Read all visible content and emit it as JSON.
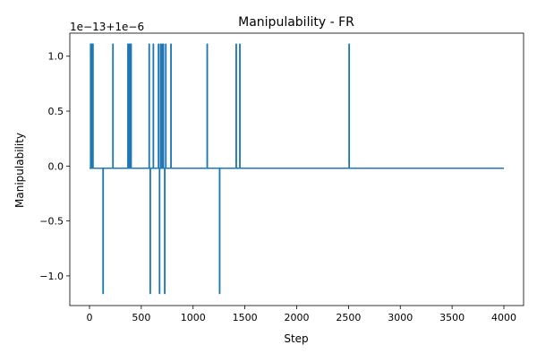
{
  "chart_data": {
    "type": "line",
    "title": "Manipulability - FR",
    "xlabel": "Step",
    "ylabel": "Manipulability",
    "offset_text": "1e−13+1e−6",
    "xlim": [
      -190,
      4190
    ],
    "ylim": [
      -1.27,
      1.21
    ],
    "x_ticks": [
      0,
      500,
      1000,
      1500,
      2000,
      2500,
      3000,
      3500,
      4000
    ],
    "x_tick_labels": [
      "0",
      "500",
      "1000",
      "1500",
      "2000",
      "2500",
      "3000",
      "3500",
      "4000"
    ],
    "y_ticks": [
      -1.0,
      -0.5,
      0.0,
      0.5,
      1.0
    ],
    "y_tick_labels": [
      "−1.0",
      "−0.5",
      "0.0",
      "0.5",
      "1.0"
    ],
    "grid": false,
    "legend": "none",
    "line_color": "#1f77b4",
    "x_range": [
      0,
      4000
    ],
    "baseline": -0.02,
    "high_value": 1.11,
    "low_value": -1.16,
    "events": [
      [
        10,
        1.11
      ],
      [
        18,
        1.11
      ],
      [
        26,
        1.11
      ],
      [
        32,
        1.11
      ],
      [
        130,
        -1.16
      ],
      [
        225,
        1.11
      ],
      [
        370,
        1.11
      ],
      [
        380,
        1.11
      ],
      [
        390,
        1.11
      ],
      [
        400,
        1.11
      ],
      [
        575,
        1.11
      ],
      [
        585,
        -1.16
      ],
      [
        615,
        1.11
      ],
      [
        665,
        1.11
      ],
      [
        675,
        -1.16
      ],
      [
        685,
        1.11
      ],
      [
        700,
        1.11
      ],
      [
        712,
        1.11
      ],
      [
        725,
        -1.16
      ],
      [
        735,
        1.11
      ],
      [
        785,
        1.11
      ],
      [
        1135,
        1.11
      ],
      [
        1255,
        -1.16
      ],
      [
        1415,
        1.11
      ],
      [
        1450,
        1.11
      ],
      [
        2505,
        1.11
      ]
    ]
  }
}
